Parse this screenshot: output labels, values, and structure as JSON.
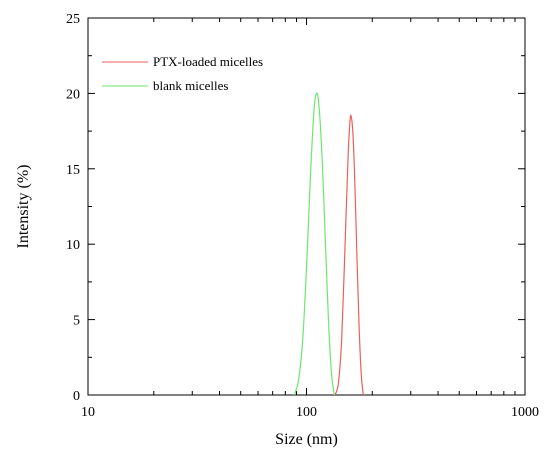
{
  "chart_data": {
    "type": "line",
    "title": "",
    "xlabel": "Size (nm)",
    "ylabel": "Intensity (%)",
    "x_scale": "log",
    "xlim": [
      10,
      1000
    ],
    "ylim": [
      0,
      25
    ],
    "x_ticks": [
      10,
      100,
      1000
    ],
    "x_tick_labels": [
      "10",
      "100",
      "1000"
    ],
    "y_ticks": [
      0,
      5,
      10,
      15,
      20,
      25
    ],
    "y_tick_labels": [
      "0",
      "5",
      "10",
      "15",
      "20",
      "25"
    ],
    "grid": false,
    "legend_position": "top-left",
    "series": [
      {
        "name": "PTX-loaded micelles",
        "color": "#e8615a",
        "x": [
          135.0,
          140.0,
          145.0,
          150.0,
          155.0,
          158.0,
          160.0,
          163.0,
          166.0,
          170.0,
          174.0,
          178.0,
          182.0
        ],
        "y": [
          0.0,
          0.8,
          3.8,
          9.8,
          15.8,
          18.1,
          18.5,
          17.4,
          14.6,
          9.4,
          4.6,
          1.4,
          0.0
        ]
      },
      {
        "name": "blank micelles",
        "color": "#6ee66e",
        "x": [
          88.0,
          92.0,
          96.0,
          100.0,
          104.0,
          108.0,
          111.0,
          114.0,
          118.0,
          122.0,
          126.0,
          130.0,
          134.0
        ],
        "y": [
          0.0,
          1.0,
          3.6,
          8.4,
          14.2,
          18.7,
          20.0,
          19.2,
          15.6,
          10.2,
          5.0,
          1.5,
          0.0
        ]
      }
    ]
  }
}
